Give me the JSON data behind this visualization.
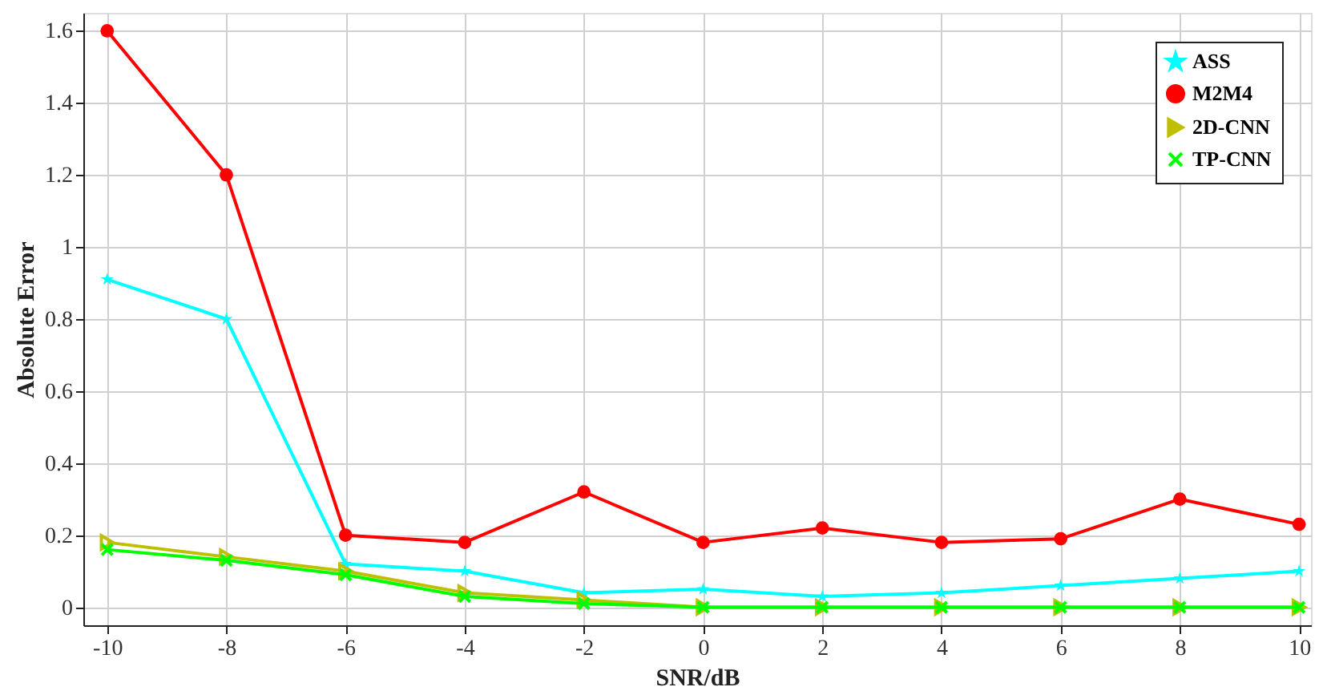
{
  "chart_data": {
    "type": "line",
    "xlabel": "SNR/dB",
    "ylabel": "Absolute Error",
    "x": [
      -10,
      -8,
      -6,
      -4,
      -2,
      0,
      2,
      4,
      6,
      8,
      10
    ],
    "xlim": [
      -10.4,
      10.2
    ],
    "xticks": [
      -10,
      -8,
      -6,
      -4,
      -2,
      0,
      2,
      4,
      6,
      8,
      10
    ],
    "ylim": [
      -0.05,
      1.65
    ],
    "yticks": [
      0,
      0.2,
      0.4,
      0.6,
      0.8,
      1,
      1.2,
      1.4,
      1.6
    ],
    "grid": true,
    "legend": "top right",
    "line_style": "solid",
    "series": [
      {
        "name": "ASS",
        "color": "#00ffff",
        "marker": "star",
        "values": [
          0.91,
          0.8,
          0.12,
          0.1,
          0.04,
          0.05,
          0.03,
          0.04,
          0.06,
          0.08,
          0.1
        ]
      },
      {
        "name": "M2M4",
        "color": "#ff0000",
        "marker": "circle",
        "values": [
          1.6,
          1.2,
          0.2,
          0.18,
          0.32,
          0.18,
          0.22,
          0.18,
          0.19,
          0.3,
          0.23
        ]
      },
      {
        "name": "2D-CNN",
        "color": "#bfbf00",
        "marker": "triangle",
        "values": [
          0.18,
          0.14,
          0.1,
          0.04,
          0.02,
          0,
          0,
          0,
          0,
          0,
          0
        ]
      },
      {
        "name": "TP-CNN",
        "color": "#00ff00",
        "marker": "cross",
        "values": [
          0.16,
          0.13,
          0.09,
          0.03,
          0.01,
          0,
          0,
          0,
          0,
          0,
          0
        ]
      }
    ]
  }
}
